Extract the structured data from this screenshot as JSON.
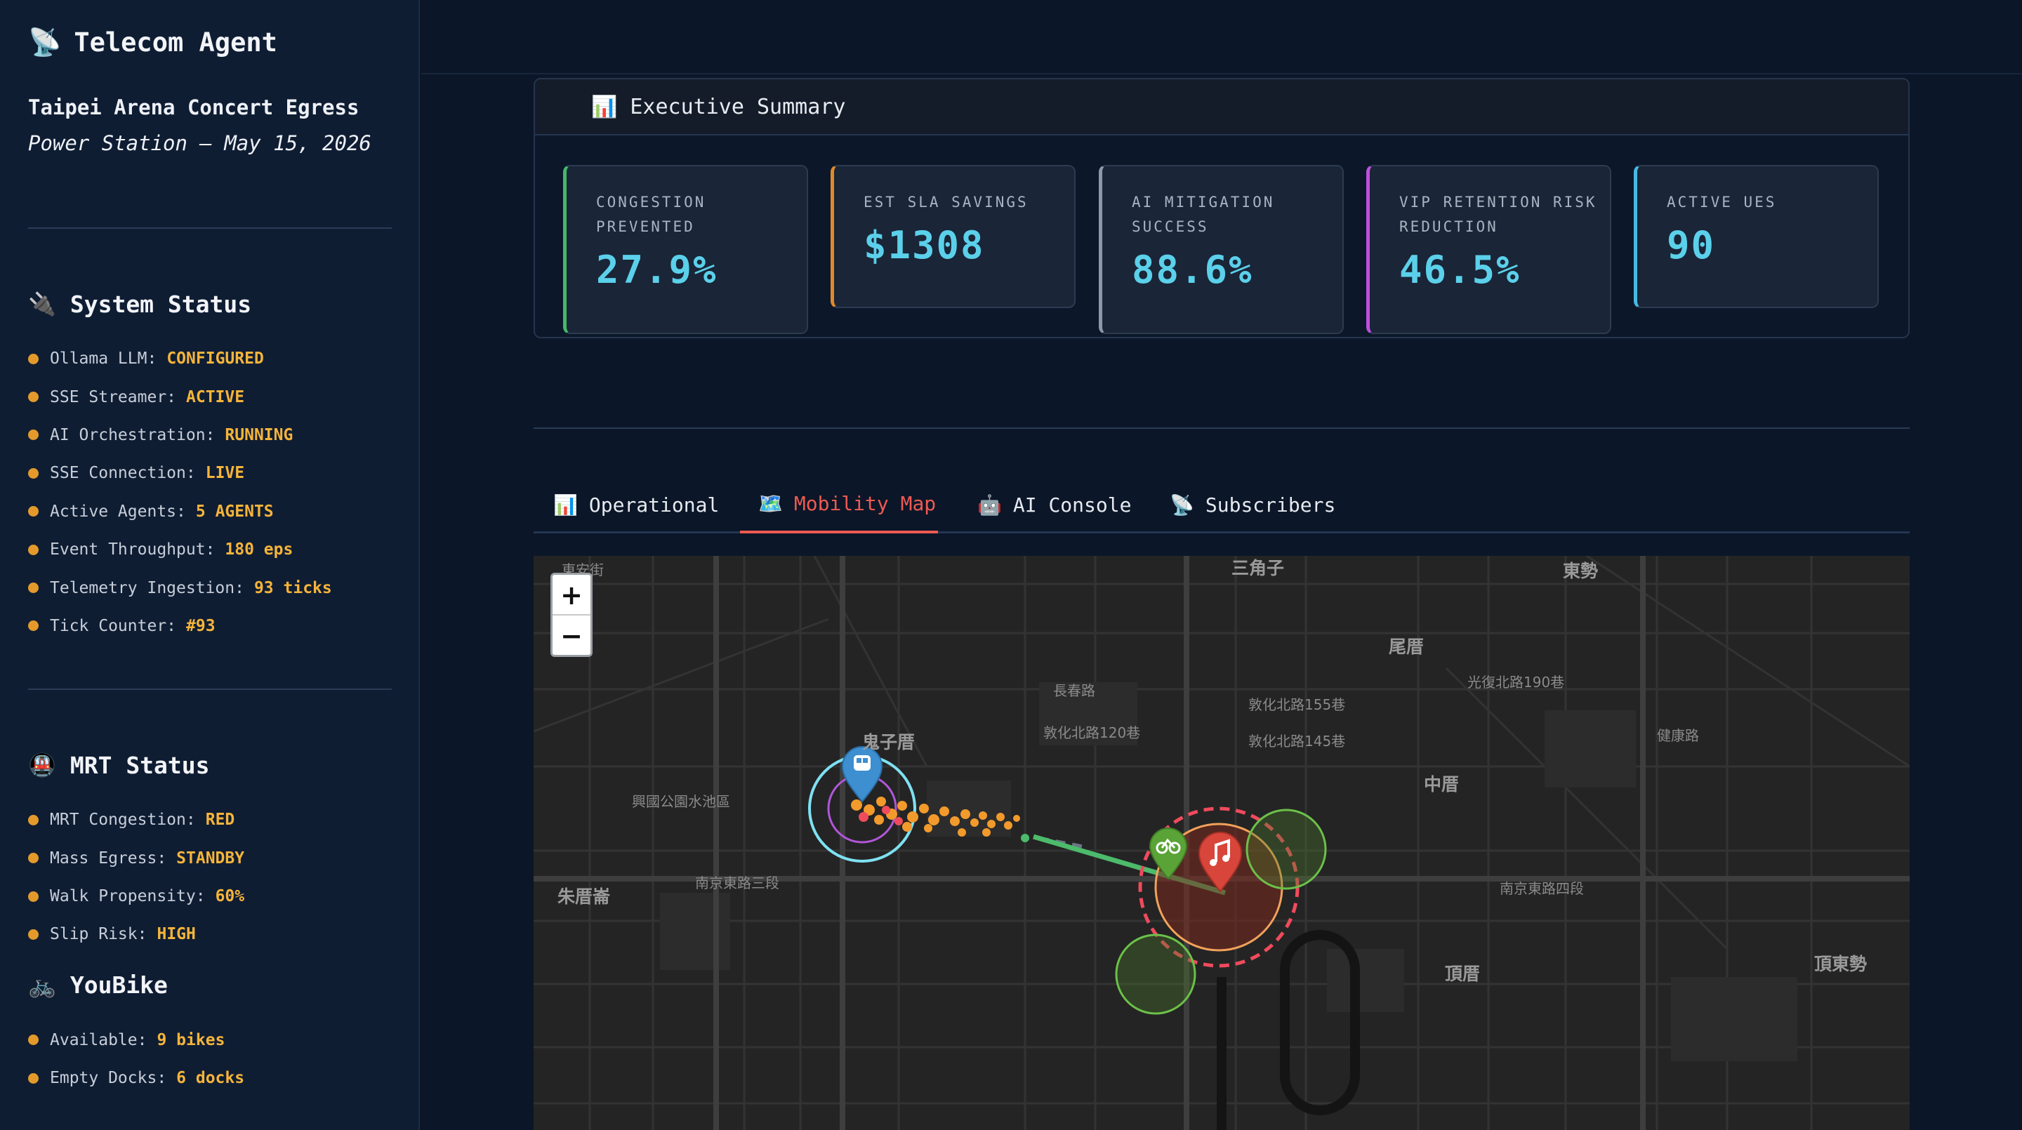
{
  "sidebar": {
    "title": "Telecom Agent",
    "title_icon": "satellite-dish-icon",
    "event": {
      "name": "Taipei Arena Concert Egress",
      "subtitle": "Power Station — May 15, 2026"
    },
    "system_status": {
      "heading": "System Status",
      "icon": "plug-icon",
      "items": [
        {
          "label": "Ollama LLM:",
          "value": "CONFIGURED"
        },
        {
          "label": "SSE Streamer:",
          "value": "ACTIVE"
        },
        {
          "label": "AI Orchestration:",
          "value": "RUNNING"
        },
        {
          "label": "SSE Connection:",
          "value": "LIVE"
        },
        {
          "label": "Active Agents:",
          "value": "5 AGENTS"
        },
        {
          "label": "Event Throughput:",
          "value": "180 eps"
        },
        {
          "label": "Telemetry Ingestion:",
          "value": "93 ticks"
        },
        {
          "label": "Tick Counter:",
          "value": "#93"
        }
      ]
    },
    "mrt_status": {
      "heading": "MRT Status",
      "icon": "metro-train-icon",
      "items": [
        {
          "label": "MRT Congestion:",
          "value": "RED"
        },
        {
          "label": "Mass Egress:",
          "value": "STANDBY"
        },
        {
          "label": "Walk Propensity:",
          "value": "60%"
        },
        {
          "label": "Slip Risk:",
          "value": "HIGH"
        }
      ]
    },
    "youbike": {
      "heading": "YouBike",
      "icon": "bicycle-icon",
      "items": [
        {
          "label": "Available:",
          "value": "9 bikes"
        },
        {
          "label": "Empty Docks:",
          "value": "6 docks"
        }
      ]
    },
    "status_dot_color": "#e39a2b"
  },
  "summary": {
    "heading": "Executive Summary",
    "icon": "bar-chart-icon",
    "kpis": [
      {
        "label": "CONGESTION PREVENTED",
        "value": "27.9%",
        "accent": "#46b86a"
      },
      {
        "label": "EST SLA SAVINGS",
        "value": "$1308",
        "accent": "#e0892a"
      },
      {
        "label": "AI MITIGATION SUCCESS",
        "value": "88.6%",
        "accent": "#8e98a8"
      },
      {
        "label": "VIP RETENTION RISK REDUCTION",
        "value": "46.5%",
        "accent": "#c04fdc"
      },
      {
        "label": "ACTIVE UES",
        "value": "90",
        "accent": "#48b9e2"
      }
    ]
  },
  "tabs": [
    {
      "label": "Operational",
      "icon": "bar-chart-icon",
      "active": false
    },
    {
      "label": "Mobility Map",
      "icon": "map-icon",
      "active": true
    },
    {
      "label": "AI Console",
      "icon": "robot-icon",
      "active": false
    },
    {
      "label": "Subscribers",
      "icon": "satellite-dish-icon",
      "active": false
    }
  ],
  "map": {
    "zoom_in": "+",
    "zoom_out": "−",
    "labels": {
      "anhe": "東安街",
      "sanjiaozi": "三角子",
      "dongshi": "東勢",
      "weicuo": "尾厝",
      "guizicuo": "鬼子厝",
      "zhongcuo": "中厝",
      "zhumeicuo": "朱厝崙",
      "dingcuo": "頂厝",
      "dingdongshi": "頂東勢",
      "nanjing_e3": "南京東路三段",
      "nanjing_e4": "南京東路四段",
      "changchun": "長春路",
      "jiankang": "健康路",
      "lane120": "敦化北路120巷",
      "lane155": "敦化北路155巷",
      "lane145": "敦化北路145巷",
      "guangfu190": "光復北路190巷",
      "park": "興國公園水池區",
      "east_an": "東安街",
      "changan": "長春路"
    },
    "colors": {
      "mrt_pin": "#3d8fd0",
      "concert_pin": "#d8453a",
      "bike_pin": "#5aa336",
      "crowd": "#f29a2c",
      "flow_line": "#4cbb6b",
      "ring_cyan": "#7ee1f2",
      "ring_red": "#ef4b5c"
    }
  }
}
